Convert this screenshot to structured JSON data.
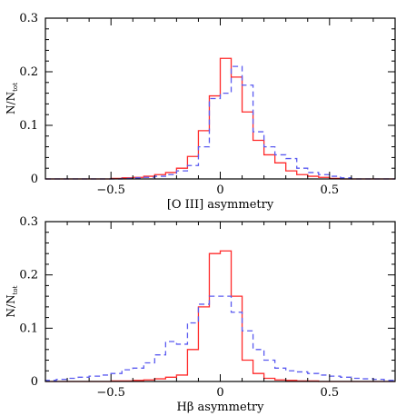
{
  "colors": {
    "red": "#ff2a2a",
    "blue": "#5a5af0",
    "axes": "#000000"
  },
  "chart_data": [
    {
      "type": "histogram",
      "ylabel_main": "N/N",
      "ylabel_sub": "tot",
      "xlabel": "[O III] asymmetry",
      "xlim": [
        -0.8,
        0.8
      ],
      "ylim": [
        0,
        0.3
      ],
      "xticks": [
        -0.5,
        0,
        0.5
      ],
      "xtick_labels": [
        "−0.5",
        "0",
        "0.5"
      ],
      "yticks": [
        0,
        0.1,
        0.2,
        0.3
      ],
      "ytick_labels": [
        "0",
        "0.1",
        "0.2",
        "0.3"
      ],
      "bin_edges": [
        -0.8,
        -0.75,
        -0.7,
        -0.65,
        -0.6,
        -0.55,
        -0.5,
        -0.45,
        -0.4,
        -0.35,
        -0.3,
        -0.25,
        -0.2,
        -0.15,
        -0.1,
        -0.05,
        0.0,
        0.05,
        0.1,
        0.15,
        0.2,
        0.25,
        0.3,
        0.35,
        0.4,
        0.45,
        0.5,
        0.55,
        0.6,
        0.65,
        0.7,
        0.75,
        0.8
      ],
      "series": [
        {
          "style": "solid",
          "color": "#ff2a2a",
          "values": [
            0,
            0,
            0,
            0,
            0,
            0,
            0.001,
            0.002,
            0.003,
            0.005,
            0.008,
            0.012,
            0.02,
            0.042,
            0.09,
            0.155,
            0.225,
            0.19,
            0.125,
            0.072,
            0.045,
            0.03,
            0.015,
            0.008,
            0.005,
            0.003,
            0.001,
            0,
            0,
            0,
            0,
            0
          ]
        },
        {
          "style": "dashed",
          "color": "#5a5af0",
          "values": [
            0,
            0,
            0,
            0,
            0,
            0,
            0,
            0.001,
            0.002,
            0.003,
            0.005,
            0.008,
            0.015,
            0.025,
            0.06,
            0.15,
            0.16,
            0.21,
            0.175,
            0.088,
            0.06,
            0.045,
            0.038,
            0.02,
            0.012,
            0.008,
            0.005,
            0.002,
            0,
            0,
            0,
            0
          ]
        }
      ]
    },
    {
      "type": "histogram",
      "ylabel_main": "N/N",
      "ylabel_sub": "tot",
      "xlabel": "Hβ asymmetry",
      "xlim": [
        -0.8,
        0.8
      ],
      "ylim": [
        0,
        0.3
      ],
      "xticks": [
        -0.5,
        0,
        0.5
      ],
      "xtick_labels": [
        "−0.5",
        "0",
        "0.5"
      ],
      "yticks": [
        0,
        0.1,
        0.2,
        0.3
      ],
      "ytick_labels": [
        "0",
        "0.1",
        "0.2",
        "0.3"
      ],
      "bin_edges": [
        -0.8,
        -0.75,
        -0.7,
        -0.65,
        -0.6,
        -0.55,
        -0.5,
        -0.45,
        -0.4,
        -0.35,
        -0.3,
        -0.25,
        -0.2,
        -0.15,
        -0.1,
        -0.05,
        0.0,
        0.05,
        0.1,
        0.15,
        0.2,
        0.25,
        0.3,
        0.35,
        0.4,
        0.45,
        0.5,
        0.55,
        0.6,
        0.65,
        0.7,
        0.75,
        0.8
      ],
      "series": [
        {
          "style": "solid",
          "color": "#ff2a2a",
          "values": [
            0,
            0,
            0,
            0,
            0,
            0,
            0.001,
            0.001,
            0.002,
            0.003,
            0.005,
            0.008,
            0.012,
            0.06,
            0.14,
            0.24,
            0.245,
            0.16,
            0.04,
            0.015,
            0.006,
            0.003,
            0.002,
            0.001,
            0.001,
            0,
            0,
            0,
            0,
            0,
            0,
            0
          ]
        },
        {
          "style": "dashed",
          "color": "#5a5af0",
          "values": [
            0.002,
            0.004,
            0.006,
            0.008,
            0.01,
            0.012,
            0.015,
            0.022,
            0.025,
            0.035,
            0.05,
            0.075,
            0.07,
            0.11,
            0.145,
            0.16,
            0.16,
            0.13,
            0.095,
            0.06,
            0.04,
            0.025,
            0.02,
            0.018,
            0.015,
            0.012,
            0.01,
            0.008,
            0.006,
            0.005,
            0.004,
            0.002
          ]
        }
      ]
    }
  ]
}
